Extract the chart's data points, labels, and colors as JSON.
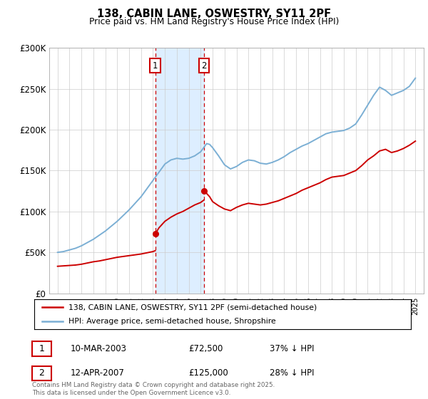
{
  "title": "138, CABIN LANE, OSWESTRY, SY11 2PF",
  "subtitle": "Price paid vs. HM Land Registry's House Price Index (HPI)",
  "legend_line1": "138, CABIN LANE, OSWESTRY, SY11 2PF (semi-detached house)",
  "legend_line2": "HPI: Average price, semi-detached house, Shropshire",
  "transaction1_date": "10-MAR-2003",
  "transaction1_price": "£72,500",
  "transaction1_hpi": "37% ↓ HPI",
  "transaction2_date": "12-APR-2007",
  "transaction2_price": "£125,000",
  "transaction2_hpi": "28% ↓ HPI",
  "footer": "Contains HM Land Registry data © Crown copyright and database right 2025.\nThis data is licensed under the Open Government Licence v3.0.",
  "red_color": "#cc0000",
  "blue_color": "#7bafd4",
  "highlight_color": "#ddeeff",
  "ylim": [
    0,
    300000
  ],
  "yticks": [
    0,
    50000,
    100000,
    150000,
    200000,
    250000,
    300000
  ],
  "ytick_labels": [
    "£0",
    "£50K",
    "£100K",
    "£150K",
    "£200K",
    "£250K",
    "£300K"
  ],
  "transaction1_year": 2003.19,
  "transaction2_year": 2007.28,
  "transaction1_price_val": 72500,
  "transaction2_price_val": 125000,
  "hpi_years": [
    1995,
    1995.5,
    1996,
    1996.5,
    1997,
    1997.5,
    1998,
    1998.5,
    1999,
    1999.5,
    2000,
    2000.5,
    2001,
    2001.5,
    2002,
    2002.5,
    2003,
    2003.5,
    2004,
    2004.5,
    2005,
    2005.5,
    2006,
    2006.5,
    2007,
    2007.25,
    2007.5,
    2007.75,
    2008,
    2008.5,
    2009,
    2009.5,
    2010,
    2010.5,
    2011,
    2011.5,
    2012,
    2012.5,
    2013,
    2013.5,
    2014,
    2014.5,
    2015,
    2015.5,
    2016,
    2016.5,
    2017,
    2017.5,
    2018,
    2018.5,
    2019,
    2019.5,
    2020,
    2020.5,
    2021,
    2021.5,
    2022,
    2022.5,
    2023,
    2023.5,
    2024,
    2024.5,
    2025
  ],
  "hpi_values": [
    50000,
    51000,
    53000,
    55000,
    58000,
    62000,
    66000,
    71000,
    76000,
    82000,
    88000,
    95000,
    102000,
    110000,
    118000,
    128000,
    138000,
    148000,
    158000,
    163000,
    165000,
    164000,
    165000,
    168000,
    173000,
    178000,
    183000,
    182000,
    178000,
    168000,
    157000,
    152000,
    155000,
    160000,
    163000,
    162000,
    159000,
    158000,
    160000,
    163000,
    167000,
    172000,
    176000,
    180000,
    183000,
    187000,
    191000,
    195000,
    197000,
    198000,
    199000,
    202000,
    207000,
    218000,
    230000,
    242000,
    252000,
    248000,
    242000,
    245000,
    248000,
    253000,
    263000
  ],
  "red_years_1": [
    1995,
    1995.5,
    1996,
    1996.5,
    1997,
    1997.5,
    1998,
    1998.5,
    1999,
    1999.5,
    2000,
    2000.5,
    2001,
    2001.5,
    2002,
    2002.5,
    2003.0,
    2003.18
  ],
  "red_vals_1": [
    33000,
    33500,
    34000,
    34500,
    35500,
    37000,
    38500,
    39500,
    41000,
    42500,
    44000,
    45000,
    46000,
    47000,
    48000,
    49500,
    51000,
    52000
  ],
  "red_years_2": [
    2003.19,
    2003.5,
    2004,
    2004.5,
    2005,
    2005.5,
    2006,
    2006.5,
    2007.0,
    2007.27
  ],
  "red_vals_2": [
    72500,
    80000,
    88000,
    93000,
    97000,
    100000,
    104000,
    108000,
    111000,
    114000
  ],
  "red_years_3": [
    2007.28,
    2007.5,
    2007.75,
    2008,
    2008.5,
    2009,
    2009.5,
    2010,
    2010.5,
    2011,
    2011.5,
    2012,
    2012.5,
    2013,
    2013.5,
    2014,
    2014.5,
    2015,
    2015.5,
    2016,
    2016.5,
    2017,
    2017.5,
    2018,
    2018.5,
    2019,
    2019.5,
    2020,
    2020.5,
    2021,
    2021.5,
    2022,
    2022.5,
    2023,
    2023.5,
    2024,
    2024.5,
    2025
  ],
  "red_vals_3": [
    125000,
    122000,
    118000,
    112000,
    107000,
    103000,
    101000,
    105000,
    108000,
    110000,
    109000,
    108000,
    109000,
    111000,
    113000,
    116000,
    119000,
    122000,
    126000,
    129000,
    132000,
    135000,
    139000,
    142000,
    143000,
    144000,
    147000,
    150000,
    156000,
    163000,
    168000,
    174000,
    176000,
    172000,
    174000,
    177000,
    181000,
    186000
  ]
}
